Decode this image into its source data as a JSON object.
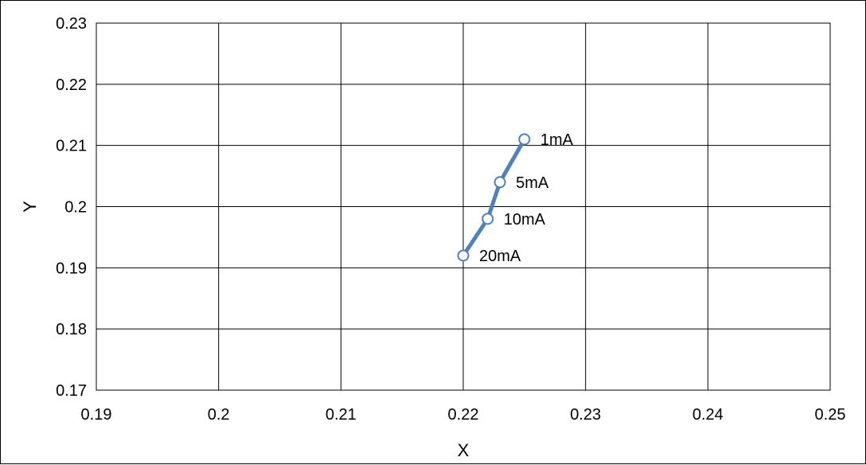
{
  "chart_data": {
    "type": "scatter",
    "xlabel": "X",
    "ylabel": "Y",
    "xlim": [
      0.19,
      0.25
    ],
    "ylim": [
      0.17,
      0.23
    ],
    "x_ticks": [
      "0.19",
      "0.2",
      "0.21",
      "0.22",
      "0.23",
      "0.24",
      "0.25"
    ],
    "y_ticks": [
      "0.23",
      "0.22",
      "0.21",
      "0.2",
      "0.19",
      "0.18",
      "0.17"
    ],
    "grid": true,
    "series": [
      {
        "color": "#4f81bd",
        "points": [
          {
            "x": 0.225,
            "y": 0.211,
            "label": "1mA"
          },
          {
            "x": 0.223,
            "y": 0.204,
            "label": "5mA"
          },
          {
            "x": 0.222,
            "y": 0.198,
            "label": "10mA"
          },
          {
            "x": 0.22,
            "y": 0.192,
            "label": "20mA"
          }
        ]
      }
    ]
  }
}
